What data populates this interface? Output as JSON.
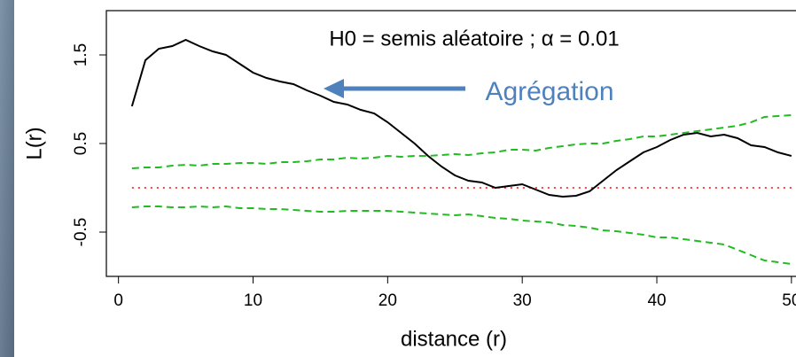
{
  "chart_data": {
    "type": "line",
    "title": "H0 = semis aléatoire ; α = 0.01",
    "annotation": "Agrégation",
    "annotation_color": "#4f81bd",
    "xlabel": "distance (r)",
    "ylabel": "L(r)",
    "x": [
      1,
      2,
      3,
      4,
      5,
      6,
      7,
      8,
      9,
      10,
      11,
      12,
      13,
      14,
      15,
      16,
      17,
      18,
      19,
      20,
      21,
      22,
      23,
      24,
      25,
      26,
      27,
      28,
      29,
      30,
      31,
      32,
      33,
      34,
      35,
      36,
      37,
      38,
      39,
      40,
      41,
      42,
      43,
      44,
      45,
      46,
      47,
      48,
      49,
      50
    ],
    "series": [
      {
        "color": "#000000",
        "style": "solid",
        "values": [
          0.92,
          1.44,
          1.57,
          1.6,
          1.67,
          1.6,
          1.54,
          1.5,
          1.4,
          1.3,
          1.24,
          1.2,
          1.17,
          1.1,
          1.04,
          0.97,
          0.94,
          0.88,
          0.84,
          0.74,
          0.62,
          0.5,
          0.36,
          0.24,
          0.14,
          0.08,
          0.06,
          0.0,
          0.02,
          0.04,
          -0.02,
          -0.08,
          -0.1,
          -0.09,
          -0.04,
          0.08,
          0.2,
          0.3,
          0.4,
          0.46,
          0.54,
          0.6,
          0.62,
          0.58,
          0.6,
          0.56,
          0.48,
          0.46,
          0.4,
          0.36
        ]
      },
      {
        "color": "#22bb22",
        "style": "dashed",
        "values": [
          0.22,
          0.23,
          0.23,
          0.25,
          0.26,
          0.25,
          0.27,
          0.27,
          0.28,
          0.28,
          0.27,
          0.29,
          0.29,
          0.3,
          0.32,
          0.32,
          0.34,
          0.33,
          0.34,
          0.36,
          0.35,
          0.36,
          0.36,
          0.37,
          0.38,
          0.37,
          0.39,
          0.4,
          0.43,
          0.43,
          0.42,
          0.45,
          0.47,
          0.49,
          0.5,
          0.5,
          0.53,
          0.55,
          0.58,
          0.58,
          0.6,
          0.62,
          0.64,
          0.66,
          0.68,
          0.7,
          0.74,
          0.8,
          0.81,
          0.82
        ]
      },
      {
        "color": "#22bb22",
        "style": "dashed",
        "values": [
          -0.22,
          -0.21,
          -0.21,
          -0.22,
          -0.22,
          -0.21,
          -0.22,
          -0.21,
          -0.23,
          -0.23,
          -0.24,
          -0.24,
          -0.25,
          -0.26,
          -0.27,
          -0.27,
          -0.26,
          -0.26,
          -0.26,
          -0.26,
          -0.27,
          -0.28,
          -0.29,
          -0.3,
          -0.31,
          -0.3,
          -0.32,
          -0.34,
          -0.35,
          -0.37,
          -0.38,
          -0.39,
          -0.42,
          -0.43,
          -0.45,
          -0.48,
          -0.49,
          -0.51,
          -0.53,
          -0.56,
          -0.56,
          -0.58,
          -0.6,
          -0.62,
          -0.64,
          -0.7,
          -0.76,
          -0.82,
          -0.84,
          -0.86
        ]
      }
    ],
    "reference_line": {
      "value": 0,
      "color": "#ff0000",
      "style": "dotted"
    },
    "xlim": [
      -0.9,
      50.8
    ],
    "ylim": [
      -1.0,
      2.0
    ],
    "xticks": [
      0,
      10,
      20,
      30,
      40,
      50
    ],
    "yticks": [
      -0.5,
      0.5,
      1.5
    ]
  }
}
